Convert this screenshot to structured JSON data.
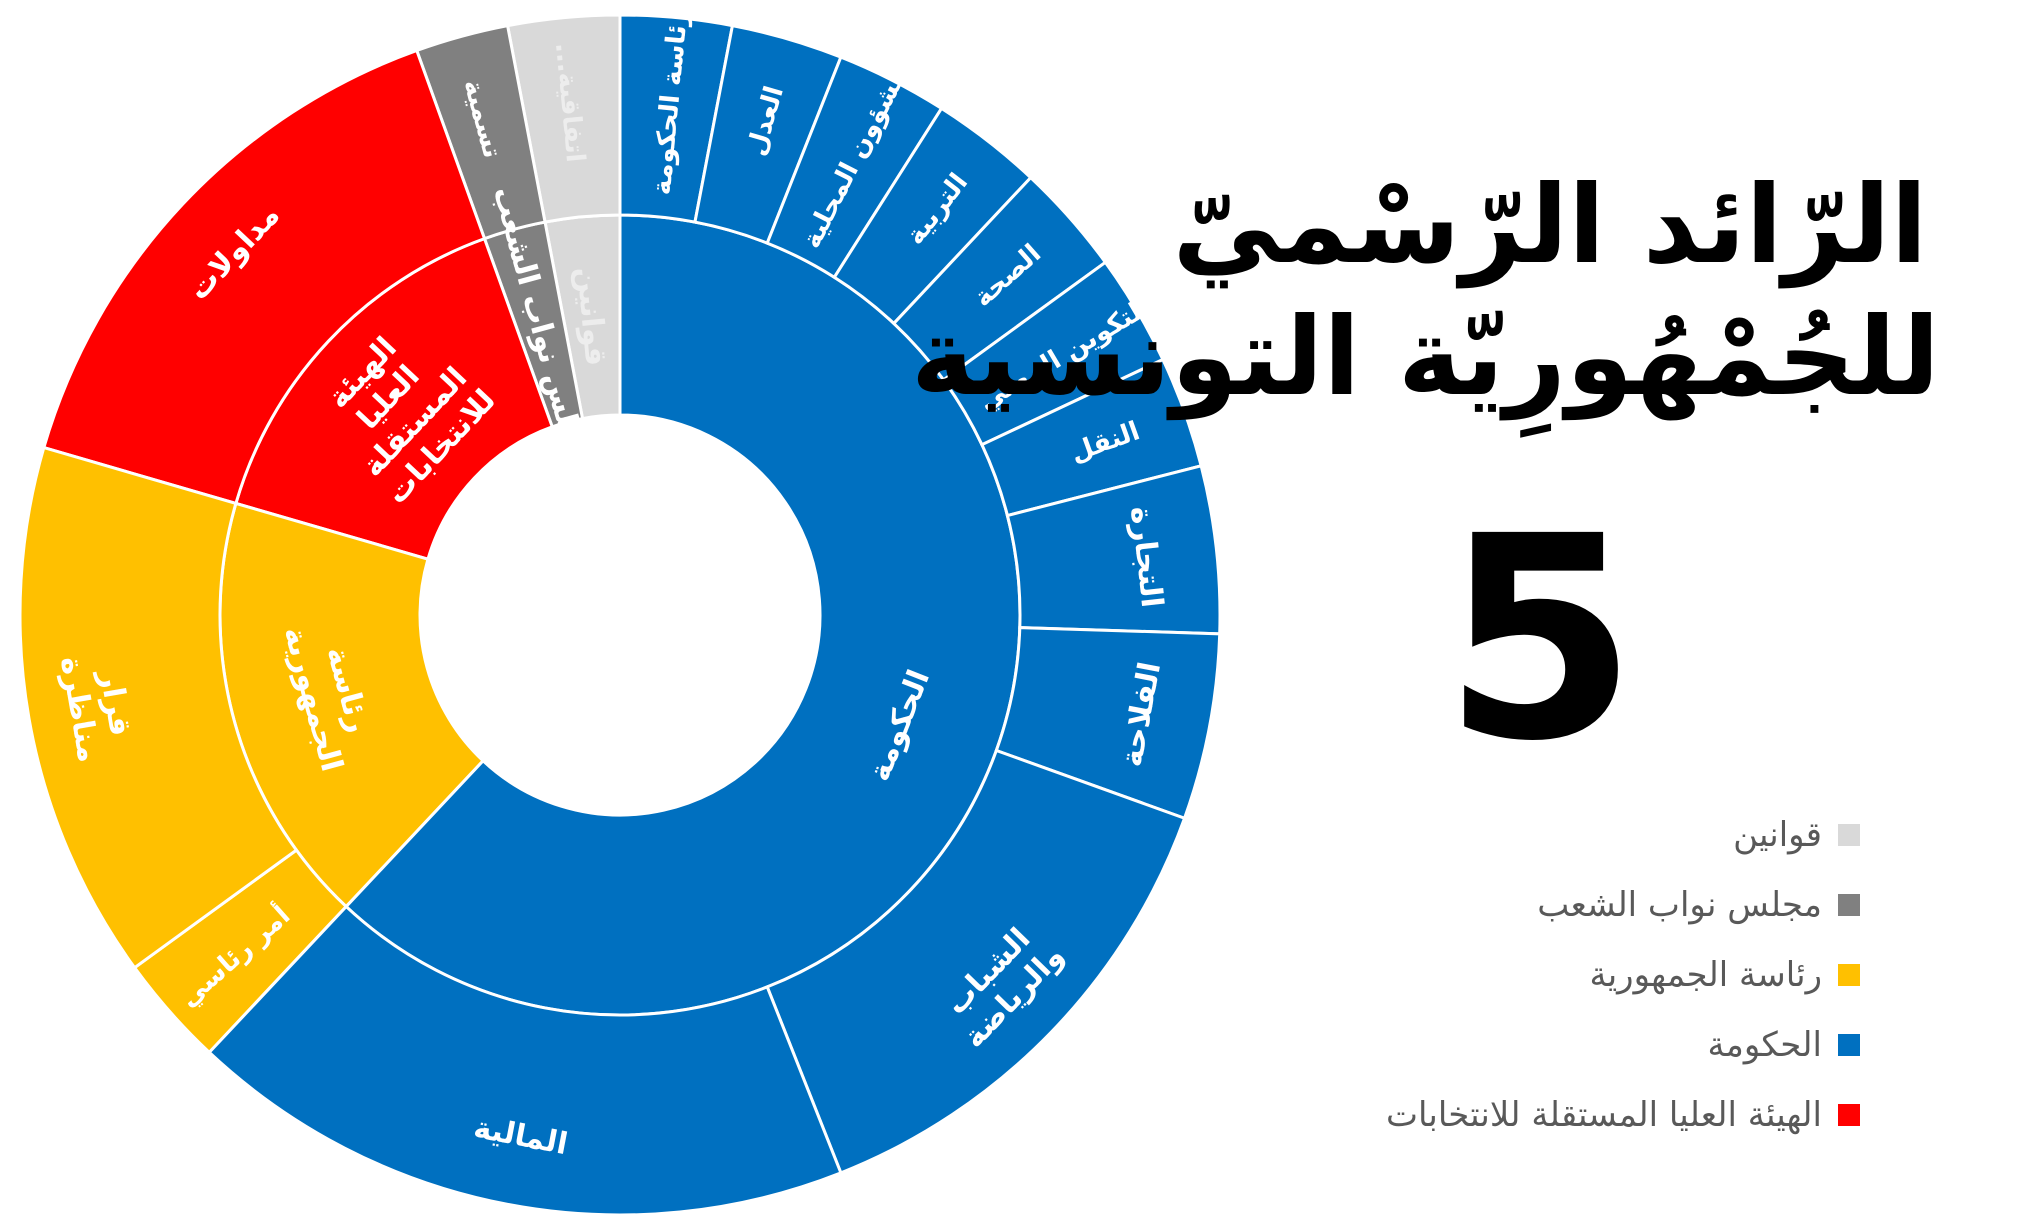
{
  "header": {
    "title_line1": "الرّائد الرّسْميّ",
    "title_line2": "للجُمْهُورِيّة التونسية",
    "issue_number": "5"
  },
  "chart_data": {
    "type": "sunburst",
    "inner_ring": [
      {
        "label": "قوانين",
        "share": 0.03,
        "color": "#d9d9d9",
        "outer": [
          {
            "label": "اتفاقية...",
            "share": 0.03
          }
        ]
      },
      {
        "label": "مجلس نواب الشعب",
        "share": 0.025,
        "color": "#808080",
        "outer": [
          {
            "label": "تسمية",
            "share": 0.025
          }
        ]
      },
      {
        "label": "الهيئة العليا المستقلة للانتخابات",
        "share": 0.15,
        "color": "#ff0000",
        "outer": [
          {
            "label": "مداولات",
            "share": 0.15
          }
        ]
      },
      {
        "label": "رئاسة الجمهورية",
        "share": 0.175,
        "color": "#ffc000",
        "outer": [
          {
            "label": "أمر رئاسي",
            "share": 0.03
          },
          {
            "label": "قرار مناظرة",
            "share": 0.145
          }
        ]
      },
      {
        "label": "الحكومة",
        "share": 0.62,
        "color": "#0070c0",
        "outer": [
          {
            "label": "رئاسة الحكومة",
            "share": 0.03
          },
          {
            "label": "العدل",
            "share": 0.03
          },
          {
            "label": "الشؤون المحلية",
            "share": 0.03
          },
          {
            "label": "التربية",
            "share": 0.03
          },
          {
            "label": "الصحة",
            "share": 0.03
          },
          {
            "label": "التكوين المهني",
            "share": 0.03
          },
          {
            "label": "النقل",
            "share": 0.03
          },
          {
            "label": "التجارة",
            "share": 0.045
          },
          {
            "label": "الفلاحة",
            "share": 0.05
          },
          {
            "label": "الشباب والرياضة",
            "share": 0.135
          },
          {
            "label": "المالية",
            "share": 0.18
          }
        ]
      }
    ],
    "legend": [
      {
        "label": "قوانين",
        "color": "#d9d9d9"
      },
      {
        "label": "مجلس نواب الشعب",
        "color": "#808080"
      },
      {
        "label": "رئاسة الجمهورية",
        "color": "#ffc000"
      },
      {
        "label": "الحكومة",
        "color": "#0070c0"
      },
      {
        "label": "الهيئة العليا المستقلة للانتخابات",
        "color": "#ff0000"
      }
    ]
  }
}
